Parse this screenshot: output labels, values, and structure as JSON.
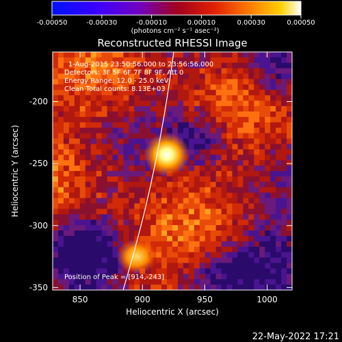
{
  "colorbar": {
    "ticks": [
      "-0.00050",
      "-0.00030",
      "-0.00010",
      "0.00010",
      "0.00030",
      "0.00050"
    ],
    "range": [
      -0.0005,
      0.0005
    ],
    "units_text": "(photons cm⁻² s⁻¹ asec⁻²)"
  },
  "title": "Reconstructed RHESSI Image",
  "annotations": {
    "time": "1-Aug-2015 23:50:56.000 to 23:56:56.000",
    "detectors": "Detectors: 3F 5F 6F 7F 8F 9F, Att 0",
    "energy": "Energy Range: 12.0 - 25.0 keV",
    "clean": "Clean    Total counts: 8.13E+03",
    "peak": "Position of Peak = [914,-243]"
  },
  "footer_date": "22-May-2022 17:21",
  "chart_data": {
    "type": "heatmap",
    "title": "Reconstructed RHESSI Image",
    "xlabel": "Heliocentric X (arcsec)",
    "ylabel": "Heliocentric Y (arcsec)",
    "xlim": [
      828,
      1020
    ],
    "ylim": [
      -352,
      -160
    ],
    "xticks": [
      850,
      900,
      950,
      1000
    ],
    "yticks": [
      -200,
      -250,
      -300,
      -350
    ],
    "colormap": "IDL hot-blue (blue → purple → red → orange → yellow → white)",
    "peak_position": [
      914,
      -243
    ],
    "limb_arc": "white solar limb curve from lower-left to top"
  }
}
